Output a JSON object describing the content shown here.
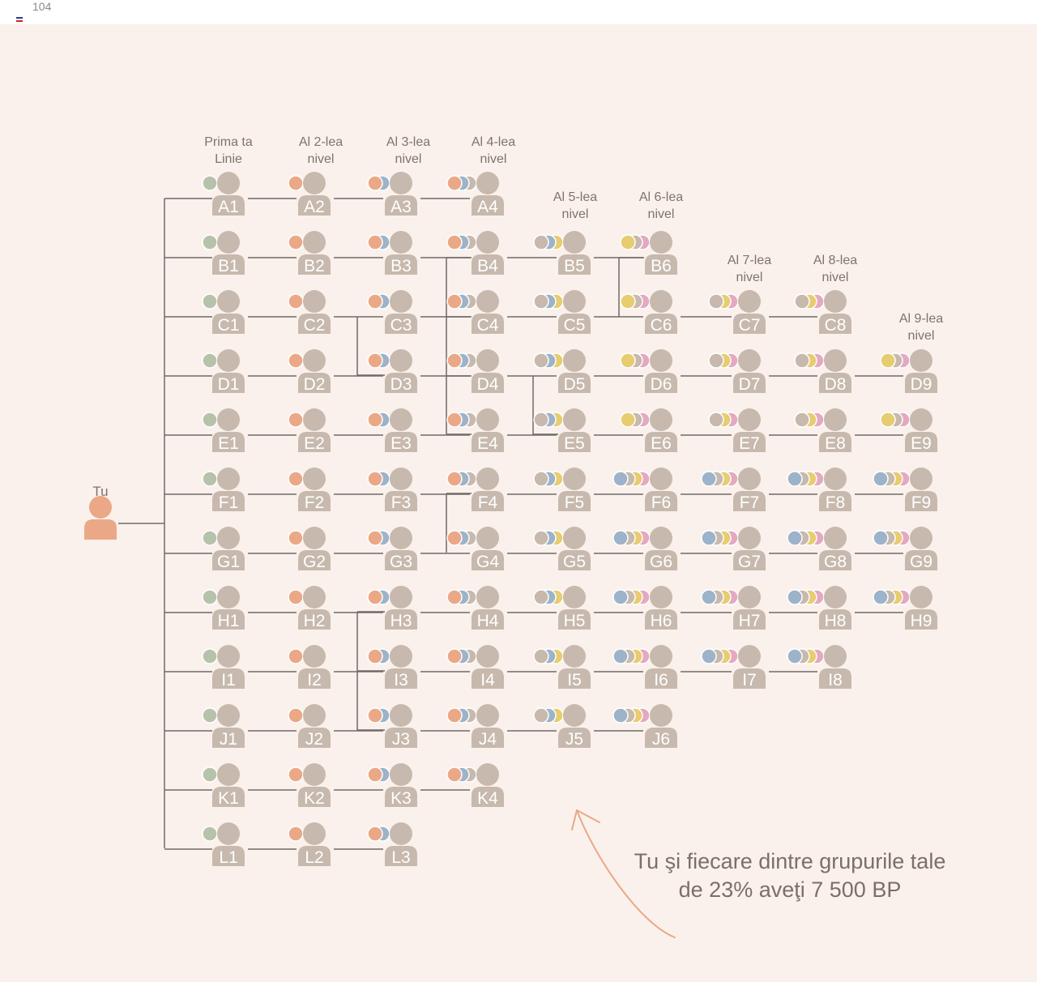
{
  "page": {
    "number": "104"
  },
  "colors": {
    "background": "#faf1ec",
    "person": "#c7b9ad",
    "you": "#eba886",
    "line": "#6f6a66",
    "dot_green": "#b7c2aa",
    "dot_orange": "#eba886",
    "dot_blue": "#9cb3ca",
    "dot_gray": "#c7b9ad",
    "dot_yellow": "#e7cc70",
    "dot_pink": "#e4a9c0"
  },
  "root": {
    "label": "Tu",
    "icon": "person-icon"
  },
  "level_headers": [
    "Prima ta\nLinie",
    "Al 2-lea\nnivel",
    "Al 3-lea\nnivel",
    "Al 4-lea\nnivel",
    "Al 5-lea\nnivel",
    "Al 6-lea\nnivel",
    "Al 7-lea\nnivel",
    "Al 8-lea\nnivel",
    "Al 9-lea\nnivel"
  ],
  "rows": [
    {
      "letter": "A",
      "nodes": [
        "A1",
        "A2",
        "A3",
        "A4"
      ]
    },
    {
      "letter": "B",
      "nodes": [
        "B1",
        "B2",
        "B3",
        "B4",
        "B5",
        "B6"
      ]
    },
    {
      "letter": "C",
      "nodes": [
        "C1",
        "C2",
        "C3",
        "C4",
        "C5",
        "C6",
        "C7",
        "C8"
      ]
    },
    {
      "letter": "D",
      "nodes": [
        "D1",
        "D2",
        "D3",
        "D4",
        "D5",
        "D6",
        "D7",
        "D8",
        "D9"
      ]
    },
    {
      "letter": "E",
      "nodes": [
        "E1",
        "E2",
        "E3",
        "E4",
        "E5",
        "E6",
        "E7",
        "E8",
        "E9"
      ]
    },
    {
      "letter": "F",
      "nodes": [
        "F1",
        "F2",
        "F3",
        "F4",
        "F5",
        "F6",
        "F7",
        "F8",
        "F9"
      ]
    },
    {
      "letter": "G",
      "nodes": [
        "G1",
        "G2",
        "G3",
        "G4",
        "G5",
        "G6",
        "G7",
        "G8",
        "G9"
      ]
    },
    {
      "letter": "H",
      "nodes": [
        "H1",
        "H2",
        "H3",
        "H4",
        "H5",
        "H6",
        "H7",
        "H8",
        "H9"
      ]
    },
    {
      "letter": "I",
      "nodes": [
        "I1",
        "I2",
        "I3",
        "I4",
        "I5",
        "I6",
        "I7",
        "I8"
      ]
    },
    {
      "letter": "J",
      "nodes": [
        "J1",
        "J2",
        "J3",
        "J4",
        "J5",
        "J6"
      ]
    },
    {
      "letter": "K",
      "nodes": [
        "K1",
        "K2",
        "K3",
        "K4"
      ]
    },
    {
      "letter": "L",
      "nodes": [
        "L1",
        "L2",
        "L3"
      ]
    }
  ],
  "footnote": "Tu şi fiecare dintre grupurile tale de 23% aveţi 7 500 BP"
}
